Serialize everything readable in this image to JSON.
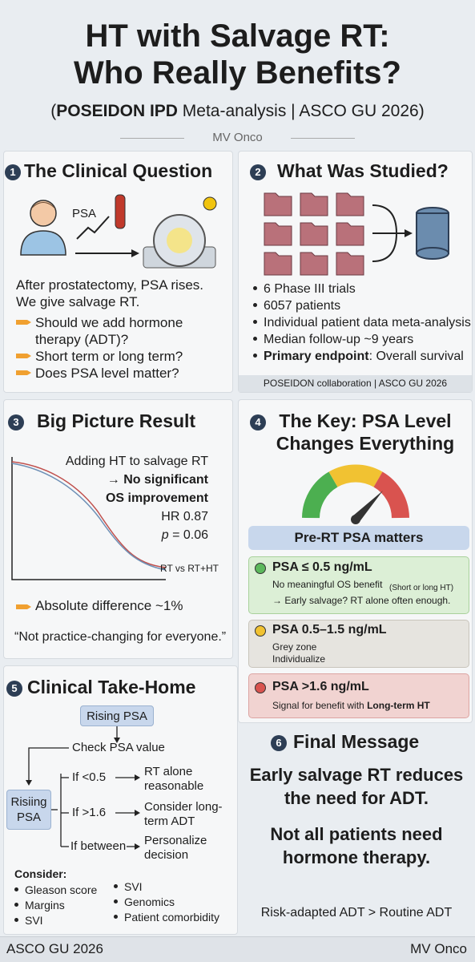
{
  "header": {
    "title_lines": [
      "HT with Salvage RT:",
      "Who Really Benefits?"
    ],
    "subtitle": {
      "open": "(",
      "bold": "POSEIDON IPD",
      "rest": " Meta-analysis | ASCO GU 2026)"
    },
    "author": "MV Onco"
  },
  "sections": [
    {
      "number": "1",
      "title": "The Clinical Question",
      "image_label": "PSA",
      "intro": "After prostatectomy, PSA rises. We give salvage RT.",
      "questions": [
        "Should we add hormone therapy (ADT)?",
        "Short term or long term?",
        "Does PSA level matter?"
      ]
    },
    {
      "number": "2",
      "title": "What Was Studied?",
      "bullets": [
        "6 Phase III trials",
        "6057 patients",
        "Individual patient data meta-analysis",
        "Median follow-up ~9 years"
      ],
      "endpoint_label": "Primary endpoint",
      "endpoint_value": ": Overall survival",
      "footer": "POSEIDON collaboration | ASCO GU 2026"
    },
    {
      "number": "3",
      "title": "Big Picture Result",
      "result_lead": "Adding HT to salvage RT",
      "result_bold": "→ No significant OS improvement",
      "hr": "HR 0.87",
      "p_label": "p",
      "p_value": " = 0.06",
      "curve_label": "RT vs RT+HT",
      "absolute": "Absolute difference ~1%",
      "quote": "“Not practice-changing for everyone.”"
    },
    {
      "number": "4",
      "title": "The Key: PSA Level Changes Everything",
      "banner": "Pre-RT PSA matters",
      "levels": [
        {
          "label": "PSA ≤ 0.5 ng/mL",
          "lines": [
            "No meaningful OS benefit",
            "→ Early salvage? RT alone often enough."
          ],
          "note": "(Short or long HT)"
        },
        {
          "label": "PSA 0.5–1.5 ng/mL",
          "lines": [
            "Grey zone",
            "Individualize"
          ]
        },
        {
          "label": "PSA >1.6 ng/mL",
          "lines": [
            "Signal for benefit with "
          ],
          "bold": "Long-term HT"
        }
      ]
    },
    {
      "number": "5",
      "title": "Clinical Take-Home",
      "flow": {
        "start": "Rising PSA",
        "check": "Check PSA value",
        "node": "Risiing PSA",
        "branches": [
          {
            "condition": "If <0.5",
            "action": "RT alone reasonable"
          },
          {
            "condition": "If >1.6",
            "action": "Consider long-term ADT"
          },
          {
            "condition": "If between",
            "action": "Personalize decision"
          }
        ]
      },
      "consider_title": "Consider:",
      "consider": [
        "Gleason score",
        "Margins",
        "SVI",
        "SVI",
        "Genomics",
        "Patient comorbidity"
      ]
    },
    {
      "number": "6",
      "title": "Final Message",
      "messages": [
        "Early salvage RT reduces the need for ADT.",
        "Not all patients need hormone therapy."
      ],
      "closing": "Risk-adapted ADT > Routine ADT"
    }
  ],
  "footer": {
    "left": "ASCO GU 2026",
    "right": "MV Onco"
  }
}
